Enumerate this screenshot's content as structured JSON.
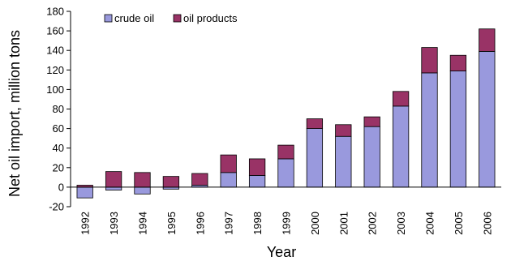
{
  "chart_data": {
    "type": "bar",
    "stacked": true,
    "categories": [
      "1992",
      "1993",
      "1994",
      "1995",
      "1996",
      "1997",
      "1998",
      "1999",
      "2000",
      "2001",
      "2002",
      "2003",
      "2004",
      "2005",
      "2006"
    ],
    "series": [
      {
        "name": "crude oil",
        "color": "#9999dd",
        "values": [
          -11,
          -3,
          -7,
          -2,
          2,
          15,
          12,
          29,
          60,
          52,
          62,
          83,
          117,
          119,
          139
        ]
      },
      {
        "name": "oil products",
        "color": "#993366",
        "values": [
          2,
          16,
          15,
          11,
          12,
          18,
          17,
          14,
          10,
          12,
          10,
          15,
          26,
          16,
          23
        ]
      }
    ],
    "xlabel": "Year",
    "ylabel": "Net oil import, million tons",
    "ylim": [
      -20,
      180
    ],
    "yticks": [
      -20,
      0,
      20,
      40,
      60,
      80,
      100,
      120,
      140,
      160,
      180
    ],
    "grid": false,
    "legend": "top-left"
  }
}
